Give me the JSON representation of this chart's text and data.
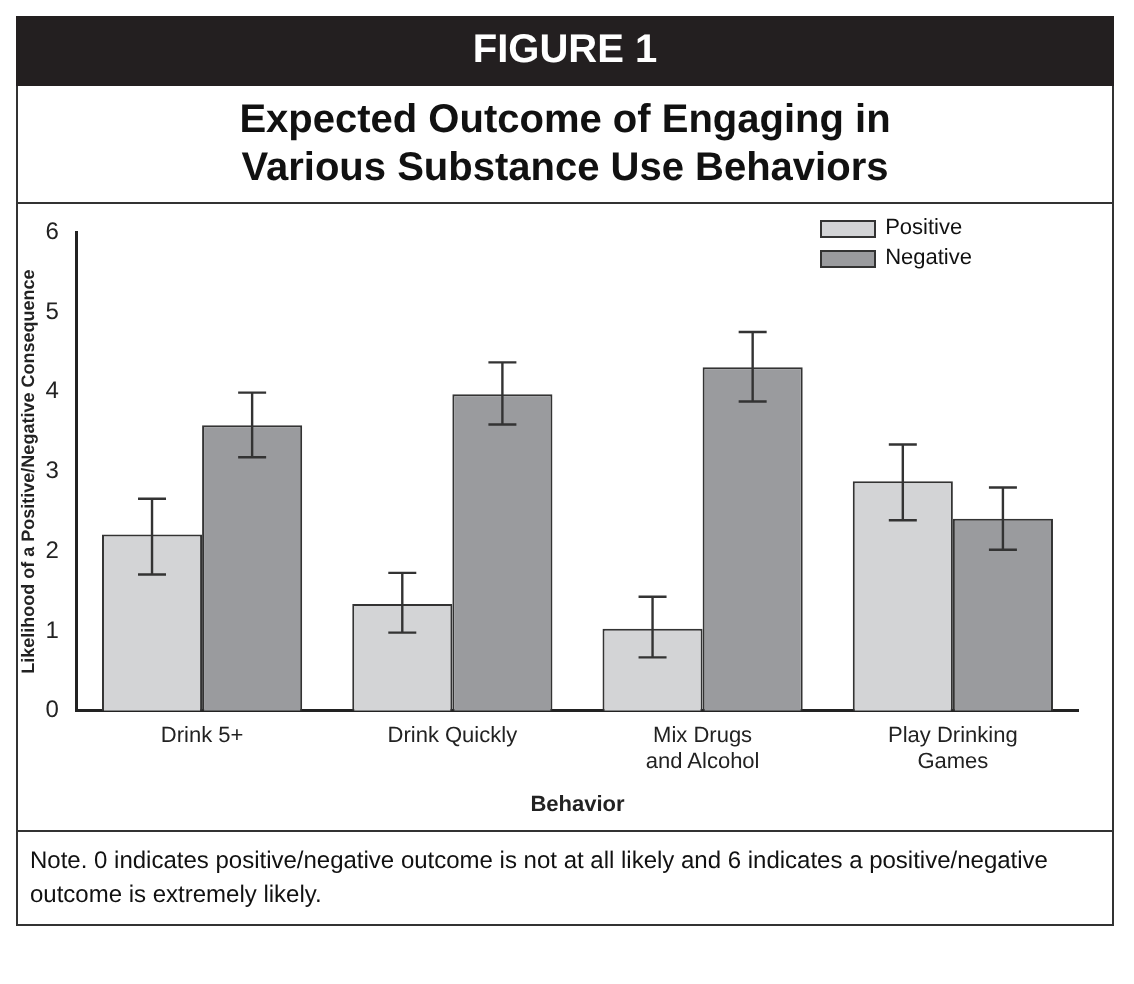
{
  "chart_data": {
    "type": "bar",
    "title": "FIGURE 1",
    "subtitle": "Expected Outcome of Engaging in Various Substance Use Behaviors",
    "xlabel": "Behavior",
    "ylabel": "Likelihood of a Positive/Negative Consequence",
    "categories": [
      "Drink 5+",
      "Drink Quickly",
      "Mix Drugs and Alcohol",
      "Play Drinking Games"
    ],
    "series": [
      {
        "name": "Positive",
        "color": "#d3d4d6",
        "values": [
          2.21,
          1.34,
          1.03,
          2.88
        ],
        "errors": [
          [
            1.71,
            2.66
          ],
          [
            0.98,
            1.73
          ],
          [
            0.67,
            1.43
          ],
          [
            2.39,
            3.34
          ]
        ]
      },
      {
        "name": "Negative",
        "color": "#9a9b9e",
        "values": [
          3.58,
          3.97,
          4.31,
          2.41
        ],
        "errors": [
          [
            3.18,
            3.99
          ],
          [
            3.59,
            4.37
          ],
          [
            3.88,
            4.75
          ],
          [
            2.02,
            2.8
          ]
        ]
      }
    ],
    "ylim": [
      0,
      6
    ],
    "yticks": [
      0,
      1,
      2,
      3,
      4,
      5,
      6
    ],
    "grid": false,
    "legend": "top right",
    "annotations": [
      "Note. 0 indicates positive/negative outcome is not at all likely and 6 indicates a positive/negative outcome is extremely likely."
    ]
  }
}
